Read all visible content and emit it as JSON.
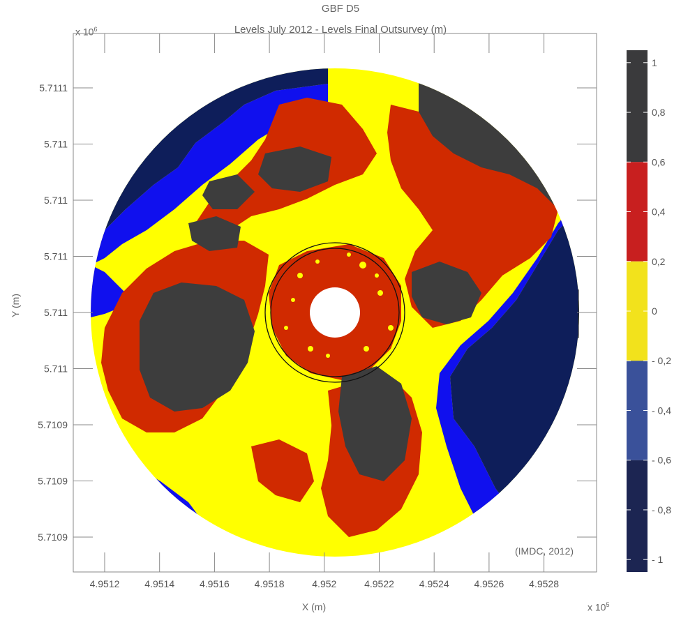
{
  "chart_data": {
    "type": "heatmap",
    "title": "GBF D5",
    "subtitle": "Levels July 2012 - Levels Final Outsurvey (m)",
    "xlabel": "X (m)",
    "ylabel": "Y (m)",
    "x_multiplier_text": "x 10",
    "x_multiplier_exp": "5",
    "y_multiplier_text": "x 10",
    "y_multiplier_exp": "6",
    "x_ticks": [
      "4.9512",
      "4.9514",
      "4.9516",
      "4.9518",
      "4.952",
      "4.9522",
      "4.9524",
      "4.9526",
      "4.9528"
    ],
    "y_ticks": [
      "5.7111",
      "5.711",
      "5.711",
      "5.711",
      "5.711",
      "5.711",
      "5.7109",
      "5.7109",
      "5.7109"
    ],
    "colorbar": {
      "ticks": [
        "1",
        "0,8",
        "0,6",
        "0,4",
        "0,2",
        "0",
        "- 0,2",
        "- 0,4",
        "- 0,6",
        "- 0,8",
        "- 1"
      ],
      "bands": [
        {
          "from": 0.6,
          "to": 1.0,
          "color": "#3a3a3c"
        },
        {
          "from": 0.2,
          "to": 0.6,
          "color": "#c81f1f"
        },
        {
          "from": -0.2,
          "to": 0.2,
          "color": "#f2e21c"
        },
        {
          "from": -0.6,
          "to": -0.2,
          "color": "#3a519a"
        },
        {
          "from": -1.0,
          "to": -0.6,
          "color": "#1c2552"
        }
      ]
    },
    "map_colors": {
      "dark": "#3d3d3d",
      "red": "#d02a00",
      "yellow": "#ffff00",
      "blue": "#1010ee",
      "navy": "#0e1e5a"
    },
    "annotation": "(IMDC, 2012)"
  }
}
